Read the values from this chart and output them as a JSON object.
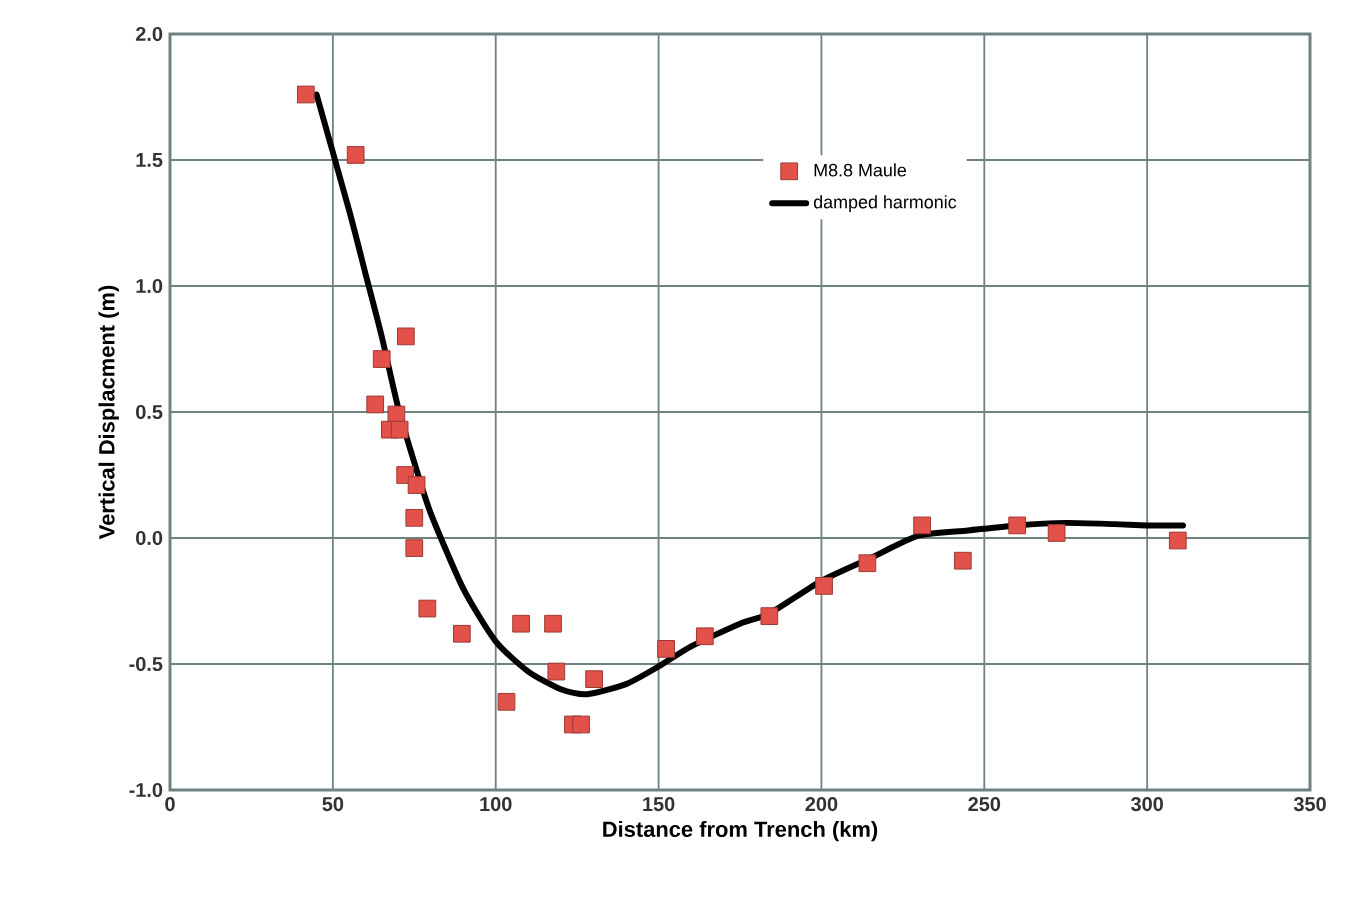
{
  "chart_data": {
    "type": "scatter",
    "xlabel": "Distance from Trench (km)",
    "ylabel": "Vertical Displacment (m)",
    "xlim": [
      0,
      350
    ],
    "ylim": [
      -1,
      2
    ],
    "xticks": [
      0,
      50,
      100,
      150,
      200,
      250,
      300,
      350
    ],
    "yticks": [
      {
        "value": -1,
        "label": "-1.0"
      },
      {
        "value": -0.5,
        "label": "-0.5"
      },
      {
        "value": 0,
        "label": "0.0"
      },
      {
        "value": 0.5,
        "label": "0.5"
      },
      {
        "value": 1,
        "label": "1.0"
      },
      {
        "value": 1.5,
        "label": "1.5"
      },
      {
        "value": 2,
        "label": "2.0"
      }
    ],
    "grid": true,
    "legend": "top right",
    "series": [
      {
        "name": "M8.8 Maule",
        "marker": "square",
        "color": "#e2524a",
        "x": [
          41.7,
          57,
          72.4,
          65,
          63,
          69.5,
          67.5,
          70.5,
          72.2,
          75.7,
          75,
          75,
          79,
          89.6,
          107.8,
          117.6,
          118.6,
          130.2,
          103.3,
          123.7,
          126.2,
          152.3,
          164.2,
          184,
          200.8,
          214.1,
          230.9,
          243.4,
          260.1,
          272.2,
          309.4
        ],
        "values": [
          1.76,
          1.52,
          0.8,
          0.71,
          0.53,
          0.49,
          0.43,
          0.43,
          0.25,
          0.21,
          0.08,
          -0.04,
          -0.28,
          -0.38,
          -0.34,
          -0.34,
          -0.53,
          -0.56,
          -0.65,
          -0.74,
          -0.74,
          -0.44,
          -0.39,
          -0.31,
          -0.19,
          -0.1,
          0.05,
          -0.09,
          0.05,
          0.02,
          -0.01
        ]
      },
      {
        "name": "damped harmonic",
        "type": "line",
        "marker": "none",
        "color": "#000000",
        "x": [
          45,
          55,
          60,
          65,
          70,
          75,
          80,
          90,
          100,
          110,
          120,
          128,
          140,
          150,
          160,
          175,
          184,
          200,
          215,
          230,
          245,
          260,
          275,
          290,
          300,
          311
        ],
        "values": [
          1.76,
          1.3,
          1.05,
          0.8,
          0.52,
          0.3,
          0.1,
          -0.2,
          -0.41,
          -0.53,
          -0.6,
          -0.62,
          -0.58,
          -0.51,
          -0.43,
          -0.34,
          -0.3,
          -0.17,
          -0.08,
          0.01,
          0.03,
          0.05,
          0.06,
          0.055,
          0.05,
          0.05
        ]
      }
    ]
  }
}
